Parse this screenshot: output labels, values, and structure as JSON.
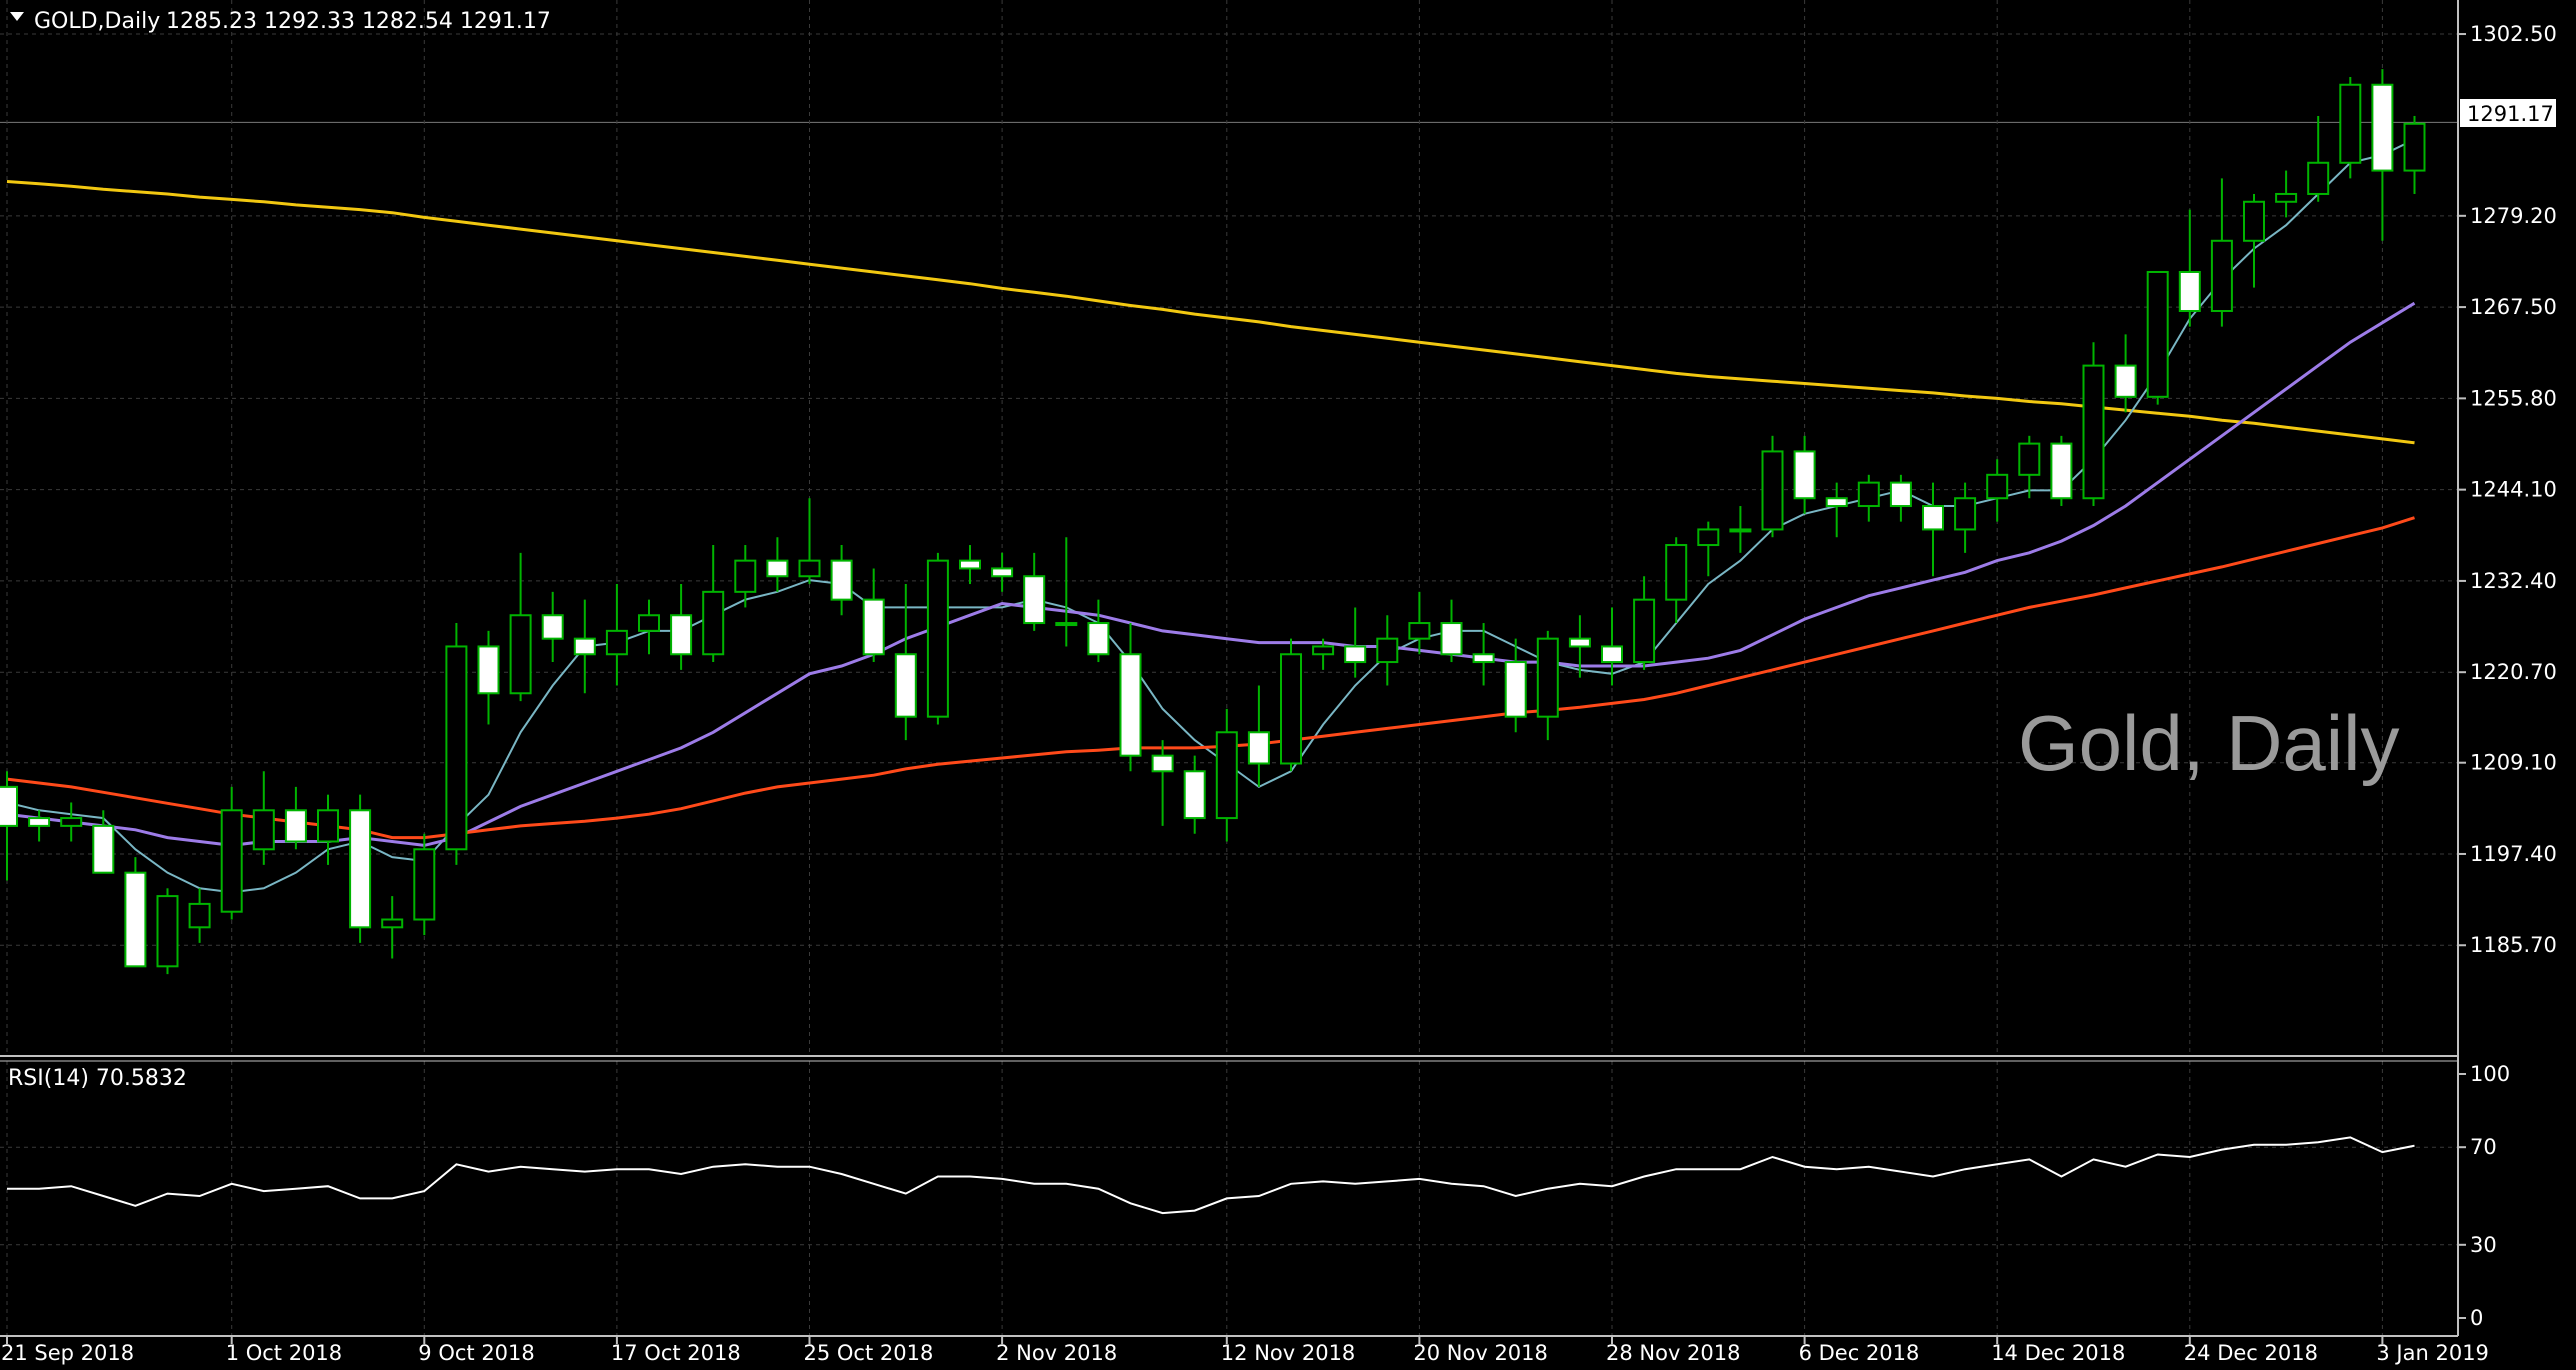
{
  "colors": {
    "background": "#000000",
    "grid": "#3a3a3a",
    "candle_outline": "#00b400",
    "bull_body": "#000000",
    "bear_body": "#ffffff",
    "ma_fast": "#79b6c4",
    "ma_mid": "#9d7ce8",
    "ma_slow": "#ff4a1a",
    "ma_long": "#f2c811",
    "rsi_line": "#ffffff",
    "axis_text": "#ffffff",
    "watermark": "#9a9a9a",
    "separator": "#c0c0c0"
  },
  "header": {
    "icon": "triangle-down-icon",
    "symbol": "GOLD,Daily",
    "ohlc": "1285.23 1292.33 1282.54 1291.17"
  },
  "watermark": "Gold, Daily",
  "price_label": "1291.17",
  "rsi_label": "RSI(14) 70.5832",
  "chart_data": [
    {
      "type": "candlestick",
      "x_tick_labels": [
        "21 Sep 2018",
        "1 Oct 2018",
        "9 Oct 2018",
        "17 Oct 2018",
        "25 Oct 2018",
        "2 Nov 2018",
        "12 Nov 2018",
        "20 Nov 2018",
        "28 Nov 2018",
        "6 Dec 2018",
        "14 Dec 2018",
        "24 Dec 2018",
        "3 Jan 2019"
      ],
      "x_tick_index": [
        0,
        7,
        13,
        19,
        25,
        31,
        38,
        44,
        50,
        56,
        62,
        68,
        74
      ],
      "y_ticks": [
        1185.7,
        1197.4,
        1209.1,
        1220.7,
        1232.4,
        1244.1,
        1255.8,
        1267.5,
        1279.2,
        1291.17,
        1302.5
      ],
      "y_tick_labels": [
        "1185.70",
        "1197.40",
        "1209.10",
        "1220.70",
        "1232.40",
        "1244.10",
        "1255.80",
        "1267.50",
        "1279.20",
        "1291.17",
        "1302.50"
      ],
      "ylim": [
        1177.4,
        1304.3
      ],
      "current_price": 1291.17,
      "ohlc": [
        [
          1206,
          1208,
          1194,
          1201
        ],
        [
          1202,
          1203,
          1199,
          1201
        ],
        [
          1201,
          1204,
          1199,
          1202
        ],
        [
          1201,
          1203,
          1196,
          1195
        ],
        [
          1195,
          1197,
          1183,
          1183
        ],
        [
          1183,
          1193,
          1182,
          1192
        ],
        [
          1188,
          1193,
          1186,
          1191
        ],
        [
          1190,
          1206,
          1189,
          1203
        ],
        [
          1198,
          1208,
          1196,
          1203
        ],
        [
          1203,
          1206,
          1198,
          1199
        ],
        [
          1199,
          1205,
          1196,
          1203
        ],
        [
          1203,
          1205,
          1186,
          1188
        ],
        [
          1188,
          1192,
          1184,
          1189
        ],
        [
          1189,
          1200,
          1187,
          1198
        ],
        [
          1198,
          1227,
          1196,
          1224
        ],
        [
          1224,
          1226,
          1214,
          1218
        ],
        [
          1218,
          1236,
          1217,
          1228
        ],
        [
          1228,
          1231,
          1222,
          1225
        ],
        [
          1225,
          1230,
          1218,
          1223
        ],
        [
          1223,
          1232,
          1219,
          1226
        ],
        [
          1226,
          1230,
          1223,
          1228
        ],
        [
          1228,
          1232,
          1221,
          1223
        ],
        [
          1223,
          1237,
          1222,
          1231
        ],
        [
          1231,
          1237,
          1229,
          1235
        ],
        [
          1235,
          1238,
          1231,
          1233
        ],
        [
          1233,
          1243,
          1232,
          1235
        ],
        [
          1235,
          1237,
          1228,
          1230
        ],
        [
          1230,
          1234,
          1222,
          1223
        ],
        [
          1223,
          1232,
          1212,
          1215
        ],
        [
          1215,
          1236,
          1214,
          1235
        ],
        [
          1235,
          1237,
          1232,
          1234
        ],
        [
          1234,
          1236,
          1231,
          1233
        ],
        [
          1233,
          1236,
          1226,
          1227
        ],
        [
          1227,
          1238,
          1224,
          1227
        ],
        [
          1227,
          1230,
          1222,
          1223
        ],
        [
          1223,
          1227,
          1208,
          1210
        ],
        [
          1210,
          1212,
          1201,
          1208
        ],
        [
          1208,
          1210,
          1200,
          1202
        ],
        [
          1202,
          1216,
          1199,
          1213
        ],
        [
          1213,
          1219,
          1206,
          1209
        ],
        [
          1209,
          1225,
          1208,
          1223
        ],
        [
          1223,
          1225,
          1221,
          1224
        ],
        [
          1224,
          1229,
          1220,
          1222
        ],
        [
          1222,
          1228,
          1219,
          1225
        ],
        [
          1225,
          1231,
          1223,
          1227
        ],
        [
          1227,
          1230,
          1222,
          1223
        ],
        [
          1223,
          1227,
          1219,
          1222
        ],
        [
          1222,
          1225,
          1213,
          1215
        ],
        [
          1215,
          1226,
          1212,
          1225
        ],
        [
          1225,
          1228,
          1220,
          1224
        ],
        [
          1224,
          1229,
          1219,
          1222
        ],
        [
          1222,
          1233,
          1221,
          1230
        ],
        [
          1230,
          1238,
          1227,
          1237
        ],
        [
          1237,
          1240,
          1233,
          1239
        ],
        [
          1239,
          1242,
          1236,
          1239
        ],
        [
          1239,
          1251,
          1238,
          1249
        ],
        [
          1249,
          1251,
          1241,
          1243
        ],
        [
          1243,
          1245,
          1238,
          1242
        ],
        [
          1242,
          1246,
          1240,
          1245
        ],
        [
          1245,
          1246,
          1240,
          1242
        ],
        [
          1242,
          1245,
          1233,
          1239
        ],
        [
          1239,
          1245,
          1236,
          1243
        ],
        [
          1243,
          1248,
          1240,
          1246
        ],
        [
          1246,
          1251,
          1243,
          1250
        ],
        [
          1250,
          1251,
          1242,
          1243
        ],
        [
          1243,
          1263,
          1242,
          1260
        ],
        [
          1260,
          1264,
          1254,
          1256
        ],
        [
          1256,
          1272,
          1255,
          1272
        ],
        [
          1272,
          1280,
          1265,
          1267
        ],
        [
          1267,
          1284,
          1265,
          1276
        ],
        [
          1276,
          1282,
          1270,
          1281
        ],
        [
          1281,
          1285,
          1279,
          1282
        ],
        [
          1282,
          1292,
          1281,
          1286
        ],
        [
          1286,
          1297,
          1284,
          1296
        ],
        [
          1296,
          1298,
          1276,
          1285
        ],
        [
          1285,
          1292,
          1282,
          1291
        ]
      ],
      "moving_averages": [
        {
          "color": "#f2c811",
          "values": [
            1283.6,
            1283.3,
            1283.0,
            1282.6,
            1282.3,
            1282.0,
            1281.6,
            1281.3,
            1281.0,
            1280.6,
            1280.3,
            1280.0,
            1279.6,
            1279.0,
            1278.5,
            1278.0,
            1277.5,
            1277.0,
            1276.5,
            1276.0,
            1275.5,
            1275.0,
            1274.5,
            1274.0,
            1273.5,
            1273.0,
            1272.5,
            1272.0,
            1271.5,
            1271.0,
            1270.5,
            1269.9,
            1269.4,
            1268.9,
            1268.3,
            1267.7,
            1267.2,
            1266.6,
            1266.1,
            1265.6,
            1265.0,
            1264.5,
            1264.0,
            1263.5,
            1263.0,
            1262.5,
            1262.0,
            1261.5,
            1261.0,
            1260.5,
            1260.0,
            1259.5,
            1259.0,
            1258.6,
            1258.3,
            1258.0,
            1257.7,
            1257.4,
            1257.1,
            1256.8,
            1256.5,
            1256.1,
            1255.8,
            1255.4,
            1255.1,
            1254.7,
            1254.3,
            1253.9,
            1253.5,
            1253.0,
            1252.6,
            1252.1,
            1251.6,
            1251.1,
            1250.6,
            1250.1
          ]
        },
        {
          "color": "#79b6c4",
          "values": [
            1204.0,
            1203.0,
            1202.5,
            1202.0,
            1198.0,
            1195.0,
            1193.0,
            1192.5,
            1193.0,
            1195.0,
            1198.0,
            1199.0,
            1197.0,
            1196.5,
            1201.0,
            1205.0,
            1213.0,
            1219.0,
            1224.0,
            1224.5,
            1226.0,
            1226.0,
            1228.0,
            1230.0,
            1231.0,
            1232.5,
            1232.0,
            1229.0,
            1229.0,
            1229.0,
            1229.0,
            1229.0,
            1230.0,
            1229.0,
            1227.0,
            1222.0,
            1216.0,
            1212.0,
            1209.0,
            1206.0,
            1208.0,
            1214.0,
            1219.0,
            1223.0,
            1225.0,
            1226.0,
            1226.0,
            1224.0,
            1222.0,
            1221.0,
            1220.5,
            1222.0,
            1227.0,
            1232.0,
            1235.0,
            1239.0,
            1241.0,
            1242.0,
            1243.0,
            1244.0,
            1242.0,
            1242.0,
            1243.0,
            1244.0,
            1244.0,
            1248.0,
            1253.0,
            1259.0,
            1266.0,
            1271.0,
            1275.0,
            1278.0,
            1282.0,
            1286.0,
            1287.0,
            1289.0
          ]
        },
        {
          "color": "#9d7ce8",
          "values": [
            1202.5,
            1202.0,
            1201.5,
            1201.0,
            1200.5,
            1199.5,
            1199.0,
            1198.5,
            1199.0,
            1199.0,
            1199.0,
            1199.5,
            1199.0,
            1198.5,
            1199.5,
            1201.5,
            1203.5,
            1205.0,
            1206.5,
            1208.0,
            1209.5,
            1211.0,
            1213.0,
            1215.5,
            1218.0,
            1220.5,
            1221.5,
            1223.0,
            1225.0,
            1226.5,
            1228.0,
            1229.5,
            1229.0,
            1228.5,
            1228.0,
            1227.0,
            1226.0,
            1225.5,
            1225.0,
            1224.5,
            1224.5,
            1224.5,
            1224.0,
            1224.0,
            1223.5,
            1223.0,
            1222.5,
            1222.0,
            1222.0,
            1221.5,
            1221.5,
            1221.5,
            1222.0,
            1222.5,
            1223.5,
            1225.5,
            1227.5,
            1229.0,
            1230.5,
            1231.5,
            1232.5,
            1233.5,
            1235.0,
            1236.0,
            1237.5,
            1239.5,
            1242.0,
            1245.0,
            1248.0,
            1251.0,
            1254.0,
            1257.0,
            1260.0,
            1263.0,
            1265.5,
            1268.0
          ]
        },
        {
          "color": "#ff4a1a",
          "values": [
            1207.0,
            1206.5,
            1206.0,
            1205.3,
            1204.6,
            1203.9,
            1203.2,
            1202.5,
            1202.0,
            1201.5,
            1201.0,
            1200.5,
            1199.5,
            1199.5,
            1200.0,
            1200.5,
            1201.0,
            1201.3,
            1201.6,
            1202.0,
            1202.5,
            1203.2,
            1204.2,
            1205.2,
            1206.0,
            1206.5,
            1207.0,
            1207.5,
            1208.3,
            1208.9,
            1209.3,
            1209.7,
            1210.1,
            1210.5,
            1210.7,
            1211.0,
            1211.0,
            1211.0,
            1211.2,
            1211.5,
            1212.0,
            1212.5,
            1213.0,
            1213.5,
            1214.0,
            1214.5,
            1215.0,
            1215.5,
            1215.8,
            1216.2,
            1216.7,
            1217.2,
            1218.0,
            1219.0,
            1220.0,
            1221.0,
            1222.0,
            1223.0,
            1224.0,
            1225.0,
            1226.0,
            1227.0,
            1228.0,
            1229.0,
            1229.8,
            1230.6,
            1231.5,
            1232.4,
            1233.3,
            1234.2,
            1235.2,
            1236.2,
            1237.2,
            1238.2,
            1239.2,
            1240.5
          ]
        }
      ]
    },
    {
      "type": "line",
      "title": "RSI(14) 70.5832",
      "y_ticks": [
        0,
        30,
        70,
        100
      ],
      "ylim": [
        0,
        100
      ],
      "values": [
        53,
        53,
        54,
        50,
        46,
        51,
        50,
        55,
        52,
        53,
        54,
        49,
        49,
        52,
        63,
        60,
        62,
        61,
        60,
        61,
        61,
        59,
        62,
        63,
        62,
        62,
        59,
        55,
        51,
        58,
        58,
        57,
        55,
        55,
        53,
        47,
        43,
        44,
        49,
        50,
        55,
        56,
        55,
        56,
        57,
        55,
        54,
        50,
        53,
        55,
        54,
        58,
        61,
        61,
        61,
        66,
        62,
        61,
        62,
        60,
        58,
        61,
        63,
        65,
        58,
        65,
        62,
        67,
        66,
        69,
        71,
        71,
        72,
        74,
        68,
        70.6
      ]
    }
  ]
}
